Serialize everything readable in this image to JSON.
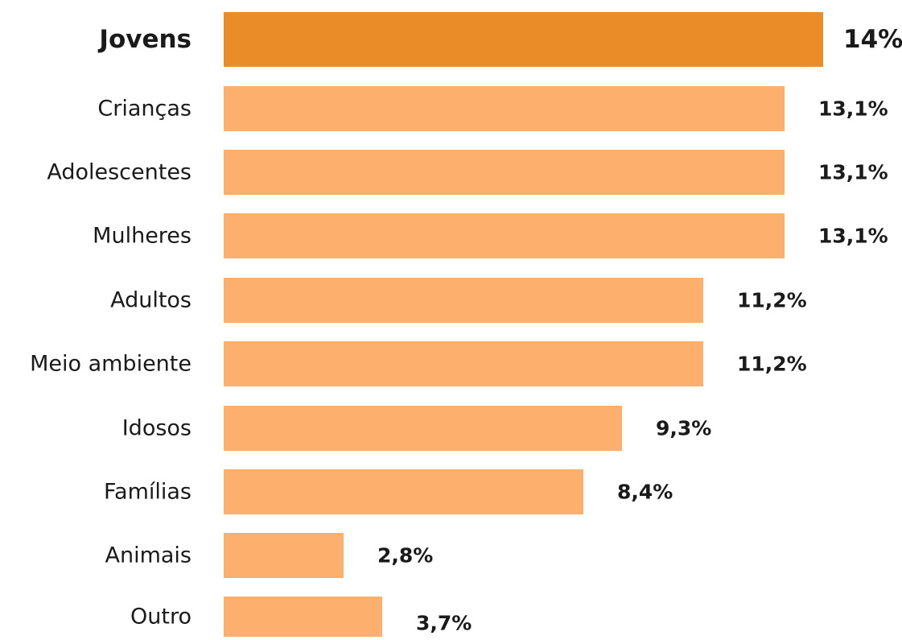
{
  "chart_data": {
    "type": "bar",
    "orientation": "horizontal",
    "categories": [
      "Jovens",
      "Crianças",
      "Adolescentes",
      "Mulheres",
      "Adultos",
      "Meio ambiente",
      "Idosos",
      "Famílias",
      "Animais",
      "Outro"
    ],
    "values": [
      14,
      13.1,
      13.1,
      13.1,
      11.2,
      11.2,
      9.3,
      8.4,
      2.8,
      3.7
    ],
    "value_labels": [
      "14%",
      "13,1%",
      "13,1%",
      "13,1%",
      "11,2%",
      "11,2%",
      "9,3%",
      "8,4%",
      "2,8%",
      "3,7%"
    ],
    "highlight_index": 0,
    "title": "",
    "xlabel": "",
    "ylabel": "",
    "xlim": [
      0,
      14
    ],
    "grid": false,
    "legend": "none"
  },
  "colors": {
    "highlight_bar": "#EA8C27",
    "bar": "#FDAF6D",
    "text": "#1a1a1a"
  }
}
